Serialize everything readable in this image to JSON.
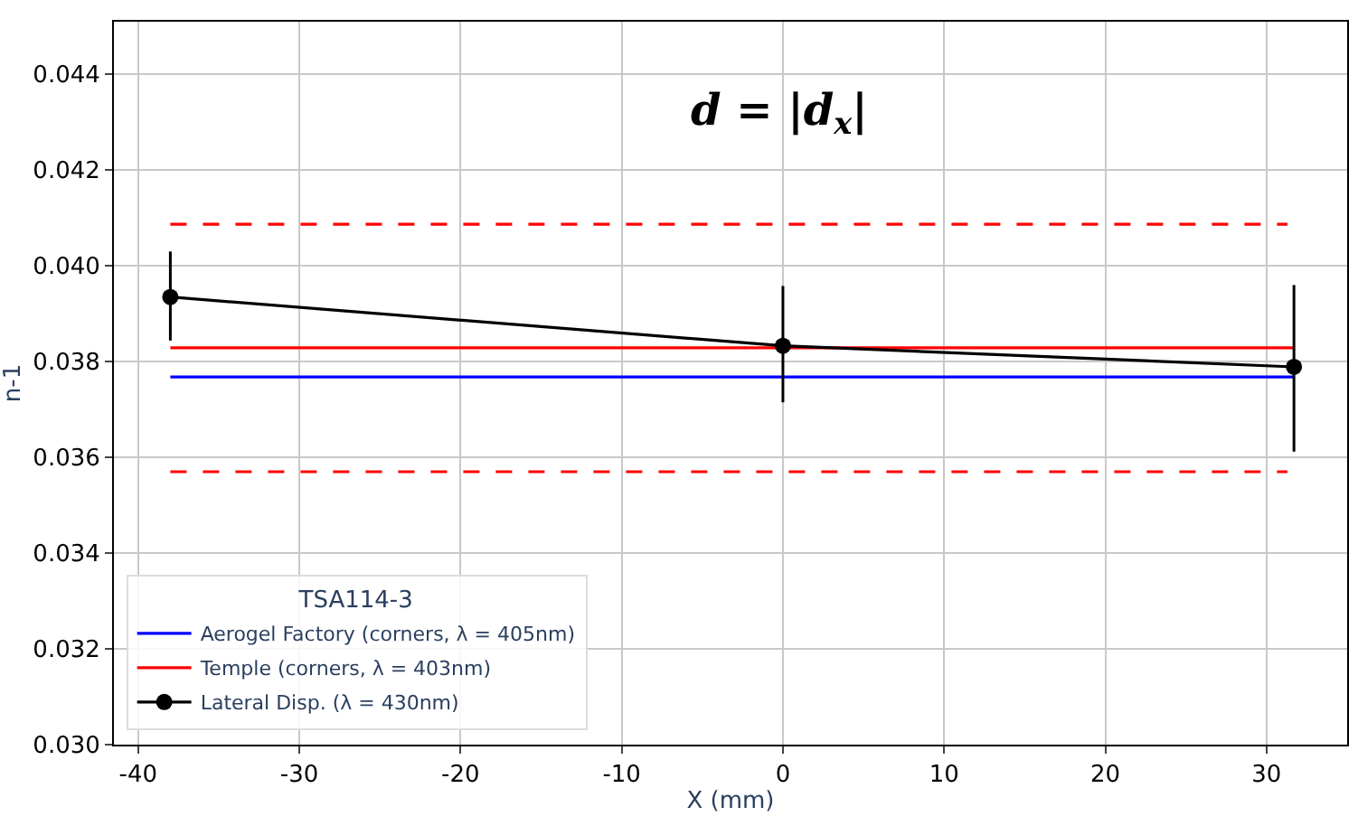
{
  "chart_data": {
    "type": "line",
    "xlabel": "X (mm)",
    "ylabel": "n-1",
    "legend_title": "TSA114-3",
    "xlim": [
      -41.5,
      35
    ],
    "xticks": [
      -40,
      -30,
      -20,
      -10,
      0,
      10,
      20,
      30
    ],
    "ylim": [
      0.03,
      0.0451
    ],
    "yticks": [
      {
        "value": 0.03,
        "label": "0.030"
      },
      0.032,
      0.034,
      0.036,
      0.038,
      {
        "value": 0.04,
        "label": "0.040"
      },
      0.042,
      0.044
    ],
    "grid": true,
    "legend": "bottom left",
    "annotations": [
      "d = |d$_{x}$|"
    ],
    "series": [
      {
        "name": "Aerogel Factory (corners, λ = 405nm)",
        "color": "#0000ff",
        "x": [
          -38,
          31.7
        ],
        "values": [
          0.03768,
          0.03768
        ],
        "marker": "none",
        "line_style": "solid"
      },
      {
        "name": "Temple (corners, λ = 403nm)",
        "color": "#ff0000",
        "x": [
          -38,
          31.7
        ],
        "values": [
          0.03829,
          0.03829
        ],
        "marker": "none",
        "line_style": "solid"
      },
      {
        "color": "#ff0000",
        "x": [
          -38,
          31.3
        ],
        "values": [
          0.04087,
          0.04087
        ],
        "marker": "none",
        "line_style": "dashed"
      },
      {
        "color": "#ff0000",
        "x": [
          -38,
          31.3
        ],
        "values": [
          0.0357,
          0.0357
        ],
        "marker": "none",
        "line_style": "dashed"
      },
      {
        "name": "Lateral Disp. (λ = 430nm)",
        "color": "#000000",
        "x": [
          -38,
          0,
          31.7
        ],
        "values": [
          0.03935,
          0.03833,
          0.03789
        ],
        "marker": "circle",
        "line_style": "solid",
        "errors": [
          [
            0.03844,
            0.0403
          ],
          [
            0.03715,
            0.03958
          ],
          [
            0.03612,
            0.0396
          ]
        ]
      }
    ]
  }
}
